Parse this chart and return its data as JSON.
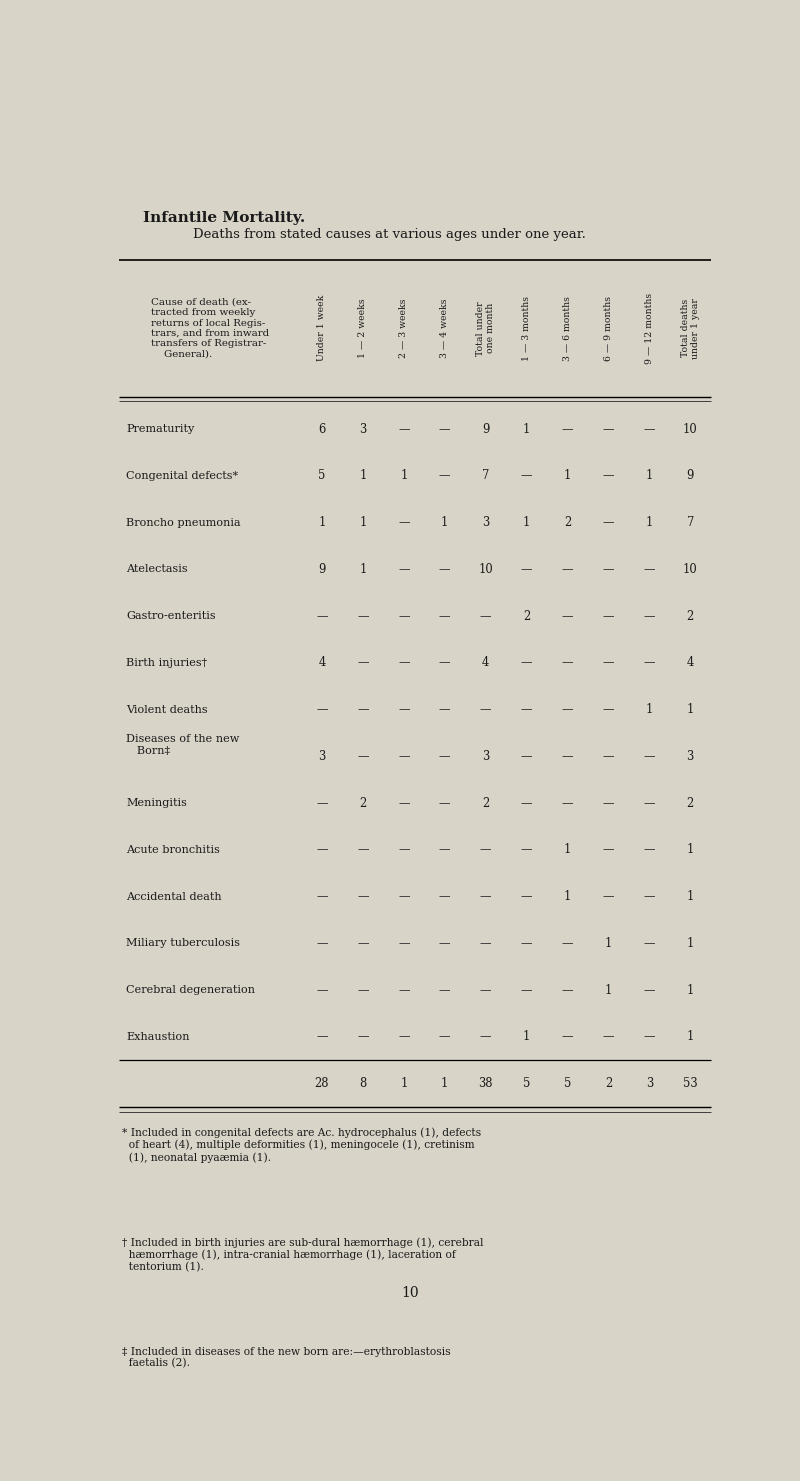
{
  "title": "Infantile Mortality.",
  "subtitle": "Deaths from stated causes at various ages under one year.",
  "bg_color": "#d8d4c8",
  "text_color": "#1a1a1a",
  "col_headers": [
    "Under 1 week",
    "1 — 2 weeks",
    "2 — 3 weeks",
    "3 — 4 weeks",
    "Total under\none month",
    "1 — 3 months",
    "3 — 6 months",
    "6 — 9 months",
    "9 — 12 months",
    "Total deaths\nunder 1 year"
  ],
  "header_label": "Cause of death (ex-\ntracted from weekly\nreturns of local Regis-\ntrars, and from inward\ntransfers of Registrar-\n    General).",
  "rows": [
    {
      "cause": "Prematurity",
      "values": [
        "6",
        "3",
        "—",
        "—",
        "9",
        "1",
        "—",
        "—",
        "—",
        "10"
      ]
    },
    {
      "cause": "Congenital defects*",
      "values": [
        "5",
        "1",
        "1",
        "—",
        "7",
        "—",
        "1",
        "—",
        "1",
        "9"
      ]
    },
    {
      "cause": "Broncho pneumonia",
      "values": [
        "1",
        "1",
        "—",
        "1",
        "3",
        "1",
        "2",
        "—",
        "1",
        "7"
      ]
    },
    {
      "cause": "Atelectasis",
      "values": [
        "9",
        "1",
        "—",
        "—",
        "10",
        "—",
        "—",
        "—",
        "—",
        "10"
      ]
    },
    {
      "cause": "Gastro-enteritis",
      "values": [
        "—",
        "—",
        "—",
        "—",
        "—",
        "2",
        "—",
        "—",
        "—",
        "2"
      ]
    },
    {
      "cause": "Birth injuries†",
      "values": [
        "4",
        "—",
        "—",
        "—",
        "4",
        "—",
        "—",
        "—",
        "—",
        "4"
      ]
    },
    {
      "cause": "Violent deaths",
      "values": [
        "—",
        "—",
        "—",
        "—",
        "—",
        "—",
        "—",
        "—",
        "1",
        "1"
      ]
    },
    {
      "cause": "Diseases of the new\n   Born‡",
      "values": [
        "3",
        "—",
        "—",
        "—",
        "3",
        "—",
        "—",
        "—",
        "—",
        "3"
      ]
    },
    {
      "cause": "Meningitis",
      "values": [
        "—",
        "2",
        "—",
        "—",
        "2",
        "—",
        "—",
        "—",
        "—",
        "2"
      ]
    },
    {
      "cause": "Acute bronchitis",
      "values": [
        "—",
        "—",
        "—",
        "—",
        "—",
        "—",
        "1",
        "—",
        "—",
        "1"
      ]
    },
    {
      "cause": "Accidental death",
      "values": [
        "—",
        "—",
        "—",
        "—",
        "—",
        "—",
        "1",
        "—",
        "—",
        "1"
      ]
    },
    {
      "cause": "Miliary tuberculosis",
      "values": [
        "—",
        "—",
        "—",
        "—",
        "—",
        "—",
        "—",
        "1",
        "—",
        "1"
      ]
    },
    {
      "cause": "Cerebral degeneration",
      "values": [
        "—",
        "—",
        "—",
        "—",
        "—",
        "—",
        "—",
        "1",
        "—",
        "1"
      ]
    },
    {
      "cause": "Exhaustion",
      "values": [
        "—",
        "—",
        "—",
        "—",
        "—",
        "1",
        "—",
        "—",
        "—",
        "1"
      ]
    }
  ],
  "totals": [
    "28",
    "8",
    "1",
    "1",
    "38",
    "5",
    "5",
    "2",
    "3",
    "53"
  ],
  "footnotes": [
    "* Included in congenital defects are Ac. hydrocephalus (1), defects\n  of heart (4), multiple deformities (1), meningocele (1), cretinism\n  (1), neonatal pyaæmia (1).",
    "† Included in birth injuries are sub-dural hæmorrhage (1), cerebral\n  hæmorrhage (1), intra-cranial hæmorrhage (1), laceration of\n  tentorium (1).",
    "‡ Included in diseases of the new born are:—erythroblastosis\n  faetalis (2)."
  ],
  "page_number": "10"
}
